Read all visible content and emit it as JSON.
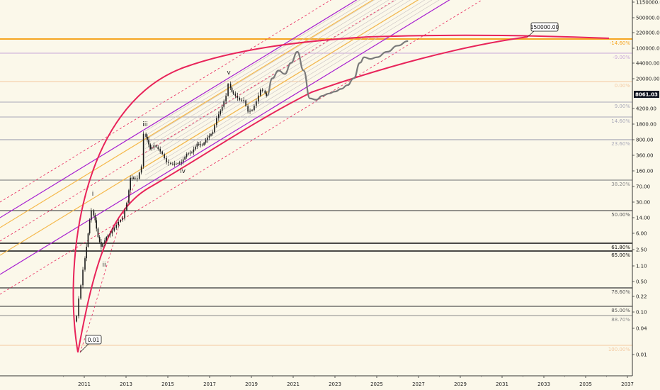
{
  "chart_data": {
    "type": "line",
    "scale": "log",
    "colors": {
      "background": "#fbf8ea",
      "arc": "#e8245a",
      "channel_outer": "#a61fd0",
      "channel_mid": "#f5b84a",
      "fan_lines": "#c9c2c2",
      "dashed": "#e8245a",
      "forecast": "#7a7a7a",
      "orange_level": "#f5a623"
    },
    "x_axis": {
      "ticks": [
        "2011",
        "2013",
        "2015",
        "2017",
        "2019",
        "2021",
        "2023",
        "2025",
        "2027",
        "2029",
        "2031",
        "2033",
        "2035",
        "2037"
      ]
    },
    "y_axis": {
      "ticks": [
        "1150000.00",
        "500000.00",
        "220000.00",
        "100000.00",
        "44000.00",
        "20000.00",
        "8061.03",
        "4200.00",
        "1800.00",
        "800.00",
        "360.00",
        "160.00",
        "70.00",
        "30.00",
        "14.00",
        "6.00",
        "2.50",
        "1.10",
        "0.50",
        "0.22",
        "0.10",
        "0.04",
        "0.01"
      ],
      "current_price": "8061.03"
    },
    "fib_levels": [
      {
        "label": "-14.60%",
        "color": "#f5a623"
      },
      {
        "label": "-9.00%",
        "color": "#c9a8d8"
      },
      {
        "label": "0.00%",
        "color": "#f3c9a0"
      },
      {
        "label": "9.00%",
        "color": "#a8a8b8"
      },
      {
        "label": "14.60%",
        "color": "#a8a8b8"
      },
      {
        "label": "23.60%",
        "color": "#a8a8b8"
      },
      {
        "label": "38.20%",
        "color": "#8a8a8a"
      },
      {
        "label": "50.00%",
        "color": "#555555"
      },
      {
        "label": "61.80%",
        "color": "#111111"
      },
      {
        "label": "65.00%",
        "color": "#111111"
      },
      {
        "label": "78.60%",
        "color": "#555555"
      },
      {
        "label": "85.00%",
        "color": "#555555"
      },
      {
        "label": "88.70%",
        "color": "#8a8a8a"
      },
      {
        "label": "100.00%",
        "color": "#f3c9a0"
      }
    ],
    "wave_labels": [
      "i",
      "ii",
      "iii",
      "iv",
      "v"
    ],
    "annotations": [
      {
        "text": "150000.00"
      },
      {
        "text": "0.01"
      }
    ],
    "series": [
      {
        "kind": "price",
        "points": [
          [
            "2010.60",
            0.06
          ],
          [
            "2010.70",
            0.08
          ],
          [
            "2010.80",
            0.2
          ],
          [
            "2010.90",
            0.4
          ],
          [
            "2011.00",
            0.9
          ],
          [
            "2011.15",
            3.0
          ],
          [
            "2011.30",
            12.0
          ],
          [
            "2011.42",
            20.0
          ],
          [
            "2011.55",
            12.0
          ],
          [
            "2011.70",
            5.0
          ],
          [
            "2011.85",
            3.0
          ],
          [
            "2011.95",
            3.5
          ],
          [
            "2012.10",
            5.0
          ],
          [
            "2012.30",
            6.0
          ],
          [
            "2012.50",
            8.0
          ],
          [
            "2012.70",
            11.0
          ],
          [
            "2012.90",
            13.5
          ],
          [
            "2013.10",
            30.0
          ],
          [
            "2013.25",
            110.0
          ],
          [
            "2013.40",
            110.0
          ],
          [
            "2013.60",
            105.0
          ],
          [
            "2013.80",
            200.0
          ],
          [
            "2013.92",
            1100.0
          ],
          [
            "2014.05",
            800.0
          ],
          [
            "2014.20",
            500.0
          ],
          [
            "2014.40",
            600.0
          ],
          [
            "2014.60",
            500.0
          ],
          [
            "2014.80",
            380.0
          ],
          [
            "2015.00",
            250.0
          ],
          [
            "2015.20",
            230.0
          ],
          [
            "2015.45",
            230.0
          ],
          [
            "2015.70",
            250.0
          ],
          [
            "2015.95",
            380.0
          ],
          [
            "2016.20",
            420.0
          ],
          [
            "2016.45",
            650.0
          ],
          [
            "2016.70",
            610.0
          ],
          [
            "2016.95",
            900.0
          ],
          [
            "2017.20",
            1200.0
          ],
          [
            "2017.40",
            2500.0
          ],
          [
            "2017.65",
            4500.0
          ],
          [
            "2017.85",
            8000.0
          ],
          [
            "2017.97",
            15000.0
          ],
          [
            "2018.10",
            10000.0
          ],
          [
            "2018.30",
            8000.0
          ],
          [
            "2018.50",
            6500.0
          ],
          [
            "2018.70",
            6300.0
          ],
          [
            "2018.90",
            3500.0
          ],
          [
            "2019.10",
            3800.0
          ],
          [
            "2019.30",
            6000.0
          ],
          [
            "2019.50",
            11000.0
          ],
          [
            "2019.62",
            10500.0
          ],
          [
            "2019.75",
            8061.03
          ]
        ]
      },
      {
        "kind": "projection",
        "points": [
          [
            "2019.75",
            8061.03
          ],
          [
            "2020.00",
            20000.0
          ],
          [
            "2020.30",
            30000.0
          ],
          [
            "2020.60",
            25000.0
          ],
          [
            "2020.90",
            45000.0
          ],
          [
            "2021.20",
            80000.0
          ],
          [
            "2021.50",
            30000.0
          ],
          [
            "2021.80",
            7000.0
          ],
          [
            "2022.10",
            6500.0
          ],
          [
            "2022.40",
            8000.0
          ],
          [
            "2022.70",
            9000.0
          ],
          [
            "2023.00",
            10000.0
          ],
          [
            "2023.30",
            11500.0
          ],
          [
            "2023.60",
            14000.0
          ],
          [
            "2023.90",
            20000.0
          ],
          [
            "2024.20",
            45000.0
          ],
          [
            "2024.40",
            60000.0
          ],
          [
            "2024.70",
            55000.0
          ],
          [
            "2025.00",
            60000.0
          ],
          [
            "2025.50",
            80000.0
          ],
          [
            "2026.00",
            110000.0
          ],
          [
            "2026.50",
            140000.0
          ]
        ]
      }
    ]
  }
}
